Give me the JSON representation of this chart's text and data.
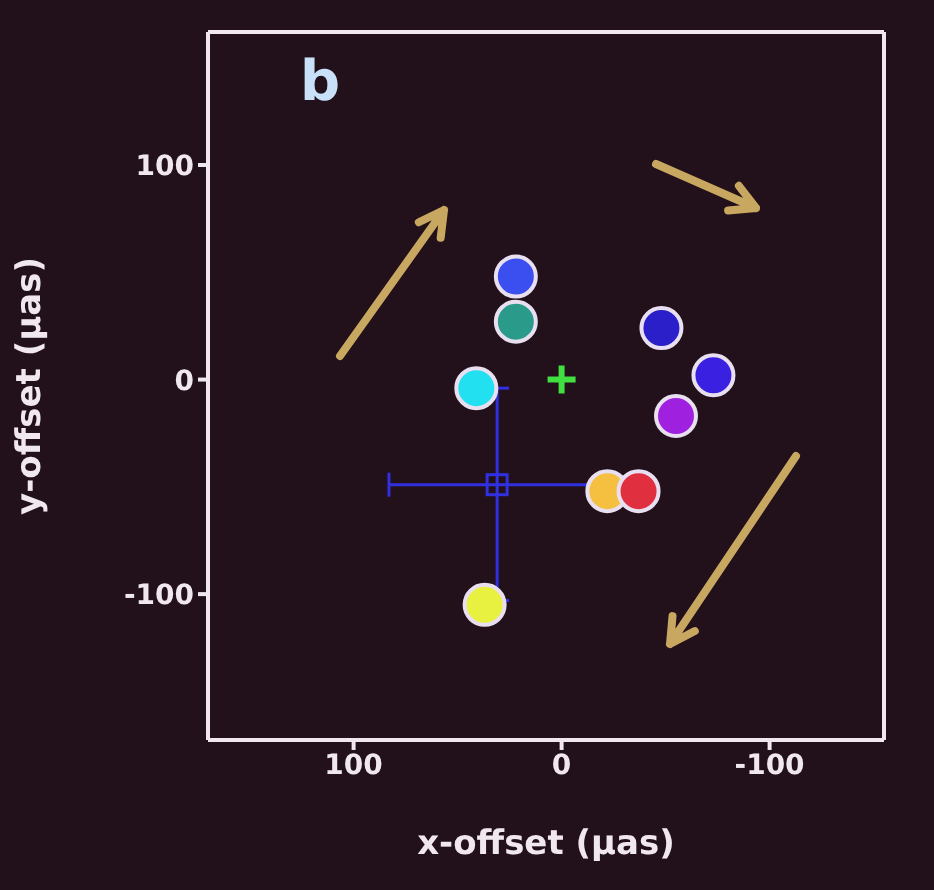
{
  "chart_data": {
    "type": "scatter",
    "xlabel": "x-offset (μas)",
    "ylabel": "y-offset (μas)",
    "annotations": [
      "b"
    ],
    "xlim": [
      170,
      -155
    ],
    "xticks": [
      100,
      0,
      -100
    ],
    "ylim": [
      -168,
      162
    ],
    "yticks": [
      -100,
      0,
      100
    ],
    "grid": false,
    "legend": false,
    "series": [
      {
        "x": [
          22,
          22,
          41,
          37,
          -22,
          -37,
          -48,
          -73,
          -55
        ],
        "values": [
          48,
          27,
          -4,
          -105,
          -52,
          -52,
          24,
          2,
          -17
        ],
        "colors": [
          "#3b4ff0",
          "#2a9a8a",
          "#22e0f0",
          "#e8f040",
          "#f5c040",
          "#e03040",
          "#2a1fc8",
          "#3a20e0",
          "#a020e0"
        ],
        "marker": "circle"
      },
      {
        "x": [
          31
        ],
        "values": [
          -49
        ],
        "color": "#3030e0",
        "marker": "square",
        "xerrors": [
          [
            -25,
            83
          ]
        ],
        "errors": [
          [
            -103,
            -4
          ]
        ]
      },
      {
        "x": [
          0
        ],
        "values": [
          0
        ],
        "color": "#40e040",
        "marker": "cross"
      }
    ]
  }
}
